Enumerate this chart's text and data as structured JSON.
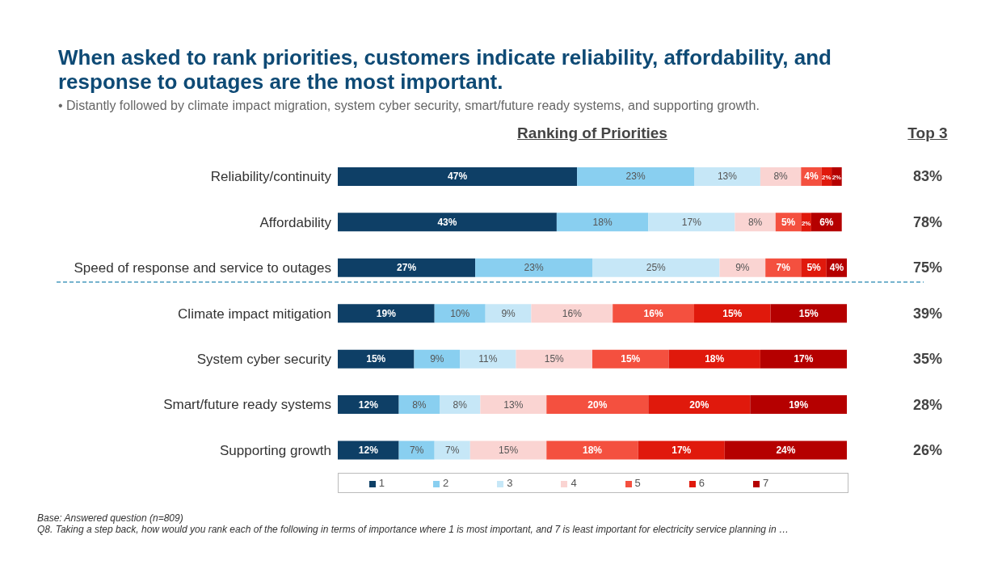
{
  "chart_data": {
    "type": "bar",
    "orientation": "horizontal",
    "stacked": true,
    "title": "When asked to rank priorities, customers indicate reliability, affordability, and response to outages are the most important.",
    "subtitle": "• Distantly followed by climate impact migration, system cyber security, smart/future ready systems, and supporting growth.",
    "xlabel": "Ranking of Priorities",
    "categories": [
      "Reliability/continuity",
      "Affordability",
      "Speed of response and service to outages",
      "Climate impact mitigation",
      "System cyber security",
      "Smart/future ready systems",
      "Supporting growth"
    ],
    "xlim": [
      0,
      100
    ],
    "tick_labels": "y",
    "legend": "bottom",
    "ref_lines": [
      {
        "axis": "y",
        "value": "Speed of response and service to outages",
        "color": "#4a9bbf",
        "line_style": "dashed"
      }
    ],
    "series": [
      {
        "name": "1",
        "color": "#0e3f66",
        "values": [
          47,
          43,
          27,
          19,
          15,
          12,
          12
        ],
        "value_labels": [
          "47%",
          "43%",
          "27%",
          "19%",
          "15%",
          "12%",
          "12%"
        ]
      },
      {
        "name": "2",
        "color": "#89cff0",
        "values": [
          23,
          18,
          23,
          10,
          9,
          8,
          7
        ],
        "value_labels": [
          "23%",
          "18%",
          "23%",
          "10%",
          "9%",
          "8%",
          "7%"
        ]
      },
      {
        "name": "3",
        "color": "#c6e7f7",
        "values": [
          13,
          17,
          25,
          9,
          11,
          8,
          7
        ],
        "value_labels": [
          "13%",
          "17%",
          "25%",
          "9%",
          "11%",
          "8%",
          "7%"
        ]
      },
      {
        "name": "4",
        "color": "#fad4d2",
        "values": [
          8,
          8,
          9,
          16,
          15,
          13,
          15
        ],
        "value_labels": [
          "8%",
          "8%",
          "9%",
          "16%",
          "15%",
          "13%",
          "15%"
        ]
      },
      {
        "name": "5",
        "color": "#f4503f",
        "values": [
          4,
          5,
          7,
          16,
          15,
          20,
          18
        ],
        "value_labels": [
          "4%",
          "5%",
          "7%",
          "16%",
          "15%",
          "20%",
          "18%"
        ]
      },
      {
        "name": "6",
        "color": "#e0190c",
        "values": [
          2,
          2,
          5,
          15,
          18,
          20,
          17
        ],
        "value_labels": [
          "2%",
          "2%",
          "5%",
          "15%",
          "18%",
          "20%",
          "17%"
        ]
      },
      {
        "name": "7",
        "color": "#b50000",
        "values": [
          2,
          6,
          4,
          15,
          17,
          19,
          24
        ],
        "value_labels": [
          "2%",
          "6%",
          "4%",
          "15%",
          "17%",
          "19%",
          "24%"
        ]
      }
    ],
    "annotations": [
      "Top 3",
      "83%",
      "78%",
      "75%",
      "39%",
      "35%",
      "28%",
      "26%",
      "Base: Answered question (n=809)",
      "Q8. Taking a step back, how would you rank each of the following in terms of importance where 1 is most important, and 7 is least important for electricity service planning in …"
    ]
  }
}
